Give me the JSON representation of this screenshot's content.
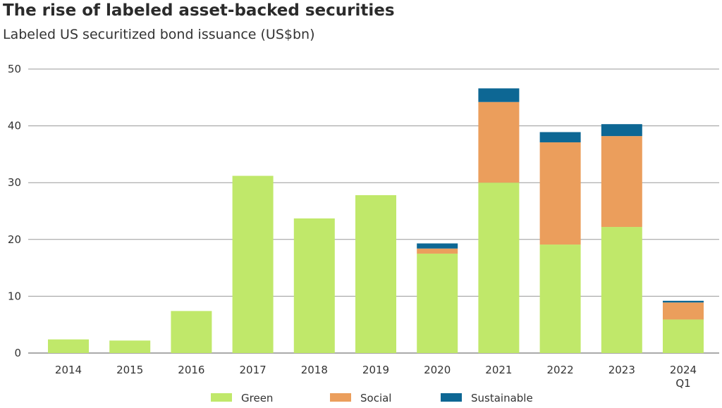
{
  "chart_data": {
    "type": "bar",
    "stacked": true,
    "title": "The rise of labeled asset-backed securities",
    "subtitle": "Labeled US securitized bond issuance (US$bn)",
    "categories": [
      "2014",
      "2015",
      "2016",
      "2017",
      "2018",
      "2019",
      "2020",
      "2021",
      "2022",
      "2023",
      "2024 Q1"
    ],
    "category_lines": [
      [
        "2014"
      ],
      [
        "2015"
      ],
      [
        "2016"
      ],
      [
        "2017"
      ],
      [
        "2018"
      ],
      [
        "2019"
      ],
      [
        "2020"
      ],
      [
        "2021"
      ],
      [
        "2022"
      ],
      [
        "2023"
      ],
      [
        "2024",
        "Q1"
      ]
    ],
    "series": [
      {
        "name": "Green",
        "color": "#c0e86a",
        "values": [
          2.4,
          2.2,
          7.4,
          31.2,
          23.7,
          27.8,
          17.5,
          30.0,
          19.1,
          22.2,
          5.9
        ]
      },
      {
        "name": "Social",
        "color": "#eb9e5c",
        "values": [
          0,
          0,
          0,
          0,
          0,
          0,
          0.9,
          14.2,
          18.0,
          16.0,
          3.0
        ]
      },
      {
        "name": "Sustainable",
        "color": "#0d6794",
        "values": [
          0,
          0,
          0,
          0,
          0,
          0,
          0.9,
          2.4,
          1.8,
          2.1,
          0.3
        ]
      }
    ],
    "ylim": [
      0,
      50
    ],
    "yticks": [
      0,
      10,
      20,
      30,
      40,
      50
    ],
    "xlabel": "",
    "ylabel": "",
    "grid": true,
    "legend_position": "bottom-center"
  }
}
